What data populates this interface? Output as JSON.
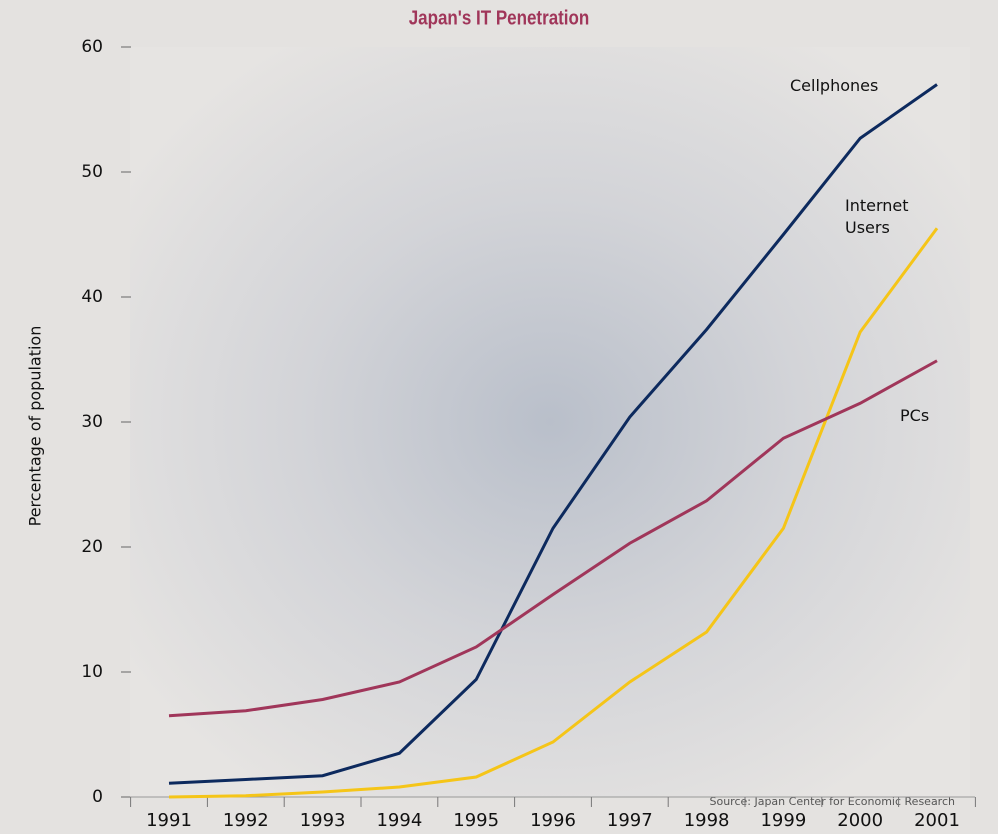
{
  "chart_data": {
    "type": "line",
    "title": "Japan's IT Penetration",
    "y_label": "Percentage of population",
    "categories": [
      "1991",
      "1992",
      "1993",
      "1994",
      "1995",
      "1996",
      "1997",
      "1998",
      "1999",
      "2000",
      "2001"
    ],
    "series": [
      {
        "name": "Cellphones",
        "color": "#0d2a5e",
        "values": [
          1.1,
          1.4,
          1.7,
          3.5,
          9.4,
          21.5,
          30.4,
          37.4,
          45,
          52.7,
          57
        ]
      },
      {
        "name": "Internet Users",
        "color": "#f5c518",
        "values": [
          0,
          0.1,
          0.4,
          0.8,
          1.6,
          4.4,
          9.2,
          13.2,
          21.5,
          37.2,
          45.5
        ]
      },
      {
        "name": "PCs",
        "color": "#a0365a",
        "values": [
          6.5,
          6.9,
          7.8,
          9.2,
          12,
          16.2,
          20.3,
          23.7,
          28.7,
          31.5,
          34.9
        ]
      }
    ],
    "ylim": [
      0,
      60
    ],
    "yticks": [
      0,
      10,
      20,
      30,
      40,
      50,
      60
    ],
    "source": "Source: Japan Center for Economic Research"
  }
}
